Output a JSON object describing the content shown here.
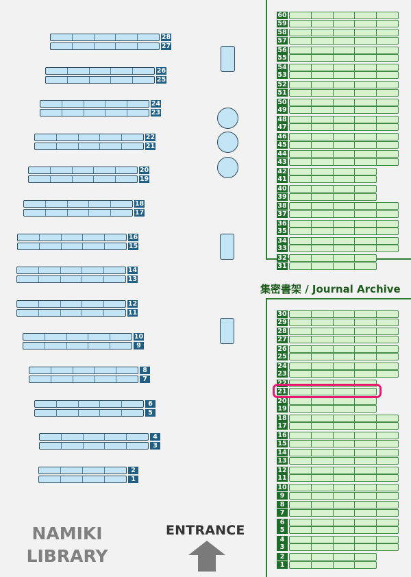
{
  "library_name": "NAMIKI LIBRARY",
  "entrance_label": "ENTRANCE",
  "archive_title": "集密書架 / Journal Archive",
  "highlighted_shelf": {
    "section": "archive",
    "number": 21
  },
  "colors": {
    "stack_fill": "#c2e4f5",
    "stack_label": "#1f5f85",
    "archive_fill": "#d8f2d0",
    "archive_label": "#1e6b2a",
    "highlight": "#e8186f"
  },
  "icons": {
    "entrance": "up-arrow-icon"
  },
  "stacks": [
    {
      "number": 28,
      "cells": 5
    },
    {
      "number": 27,
      "cells": 5
    },
    {
      "number": 26,
      "cells": 5
    },
    {
      "number": 25,
      "cells": 5
    },
    {
      "number": 24,
      "cells": 5
    },
    {
      "number": 23,
      "cells": 5
    },
    {
      "number": 22,
      "cells": 5
    },
    {
      "number": 21,
      "cells": 5
    },
    {
      "number": 20,
      "cells": 5
    },
    {
      "number": 19,
      "cells": 5
    },
    {
      "number": 18,
      "cells": 5
    },
    {
      "number": 17,
      "cells": 5
    },
    {
      "number": 16,
      "cells": 5
    },
    {
      "number": 15,
      "cells": 5
    },
    {
      "number": 14,
      "cells": 5
    },
    {
      "number": 13,
      "cells": 5
    },
    {
      "number": 12,
      "cells": 5
    },
    {
      "number": 11,
      "cells": 5
    },
    {
      "number": 10,
      "cells": 5
    },
    {
      "number": 9,
      "cells": 5
    },
    {
      "number": 8,
      "cells": 5
    },
    {
      "number": 7,
      "cells": 5
    },
    {
      "number": 6,
      "cells": 5
    },
    {
      "number": 5,
      "cells": 5
    },
    {
      "number": 4,
      "cells": 5
    },
    {
      "number": 3,
      "cells": 5
    },
    {
      "number": 2,
      "cells": 4
    },
    {
      "number": 1,
      "cells": 4
    }
  ],
  "archive_upper": [
    {
      "number": 60,
      "cells": 5
    },
    {
      "number": 59,
      "cells": 5
    },
    {
      "number": 58,
      "cells": 5
    },
    {
      "number": 57,
      "cells": 5
    },
    {
      "number": 56,
      "cells": 5
    },
    {
      "number": 55,
      "cells": 5
    },
    {
      "number": 54,
      "cells": 5
    },
    {
      "number": 53,
      "cells": 5
    },
    {
      "number": 52,
      "cells": 5
    },
    {
      "number": 51,
      "cells": 5
    },
    {
      "number": 50,
      "cells": 5
    },
    {
      "number": 49,
      "cells": 5
    },
    {
      "number": 48,
      "cells": 5
    },
    {
      "number": 47,
      "cells": 5
    },
    {
      "number": 46,
      "cells": 5
    },
    {
      "number": 45,
      "cells": 5
    },
    {
      "number": 44,
      "cells": 5
    },
    {
      "number": 43,
      "cells": 5
    },
    {
      "number": 42,
      "cells": 4
    },
    {
      "number": 41,
      "cells": 4
    },
    {
      "number": 40,
      "cells": 4
    },
    {
      "number": 39,
      "cells": 4
    },
    {
      "number": 38,
      "cells": 5
    },
    {
      "number": 37,
      "cells": 5
    },
    {
      "number": 36,
      "cells": 5
    },
    {
      "number": 35,
      "cells": 5
    },
    {
      "number": 34,
      "cells": 5
    },
    {
      "number": 33,
      "cells": 5
    },
    {
      "number": 32,
      "cells": 4
    },
    {
      "number": 31,
      "cells": 4
    }
  ],
  "archive_lower": [
    {
      "number": 30,
      "cells": 5
    },
    {
      "number": 29,
      "cells": 5
    },
    {
      "number": 28,
      "cells": 5
    },
    {
      "number": 27,
      "cells": 5
    },
    {
      "number": 26,
      "cells": 5
    },
    {
      "number": 25,
      "cells": 5
    },
    {
      "number": 24,
      "cells": 5
    },
    {
      "number": 23,
      "cells": 5
    },
    {
      "number": 22,
      "cells": 4
    },
    {
      "number": 21,
      "cells": 4
    },
    {
      "number": 20,
      "cells": 4
    },
    {
      "number": 19,
      "cells": 4
    },
    {
      "number": 18,
      "cells": 5
    },
    {
      "number": 17,
      "cells": 5
    },
    {
      "number": 16,
      "cells": 5
    },
    {
      "number": 15,
      "cells": 5
    },
    {
      "number": 14,
      "cells": 5
    },
    {
      "number": 13,
      "cells": 5
    },
    {
      "number": 12,
      "cells": 5
    },
    {
      "number": 11,
      "cells": 5
    },
    {
      "number": 10,
      "cells": 5
    },
    {
      "number": 9,
      "cells": 5
    },
    {
      "number": 8,
      "cells": 5
    },
    {
      "number": 7,
      "cells": 5
    },
    {
      "number": 6,
      "cells": 5
    },
    {
      "number": 5,
      "cells": 5
    },
    {
      "number": 4,
      "cells": 5
    },
    {
      "number": 3,
      "cells": 5
    },
    {
      "number": 2,
      "cells": 4
    },
    {
      "number": 1,
      "cells": 4
    }
  ]
}
